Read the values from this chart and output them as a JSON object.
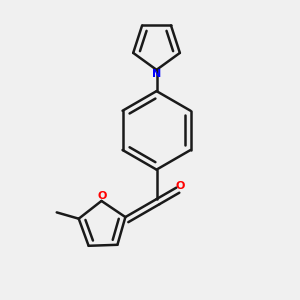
{
  "bg_color": "#f0f0f0",
  "bond_color": "#1a1a1a",
  "nitrogen_color": "#0000ff",
  "oxygen_color": "#ff0000",
  "bond_width": 1.8,
  "figsize": [
    3.0,
    3.0
  ],
  "dpi": 100,
  "xlim": [
    0.1,
    0.9
  ],
  "ylim": [
    0.05,
    0.95
  ]
}
